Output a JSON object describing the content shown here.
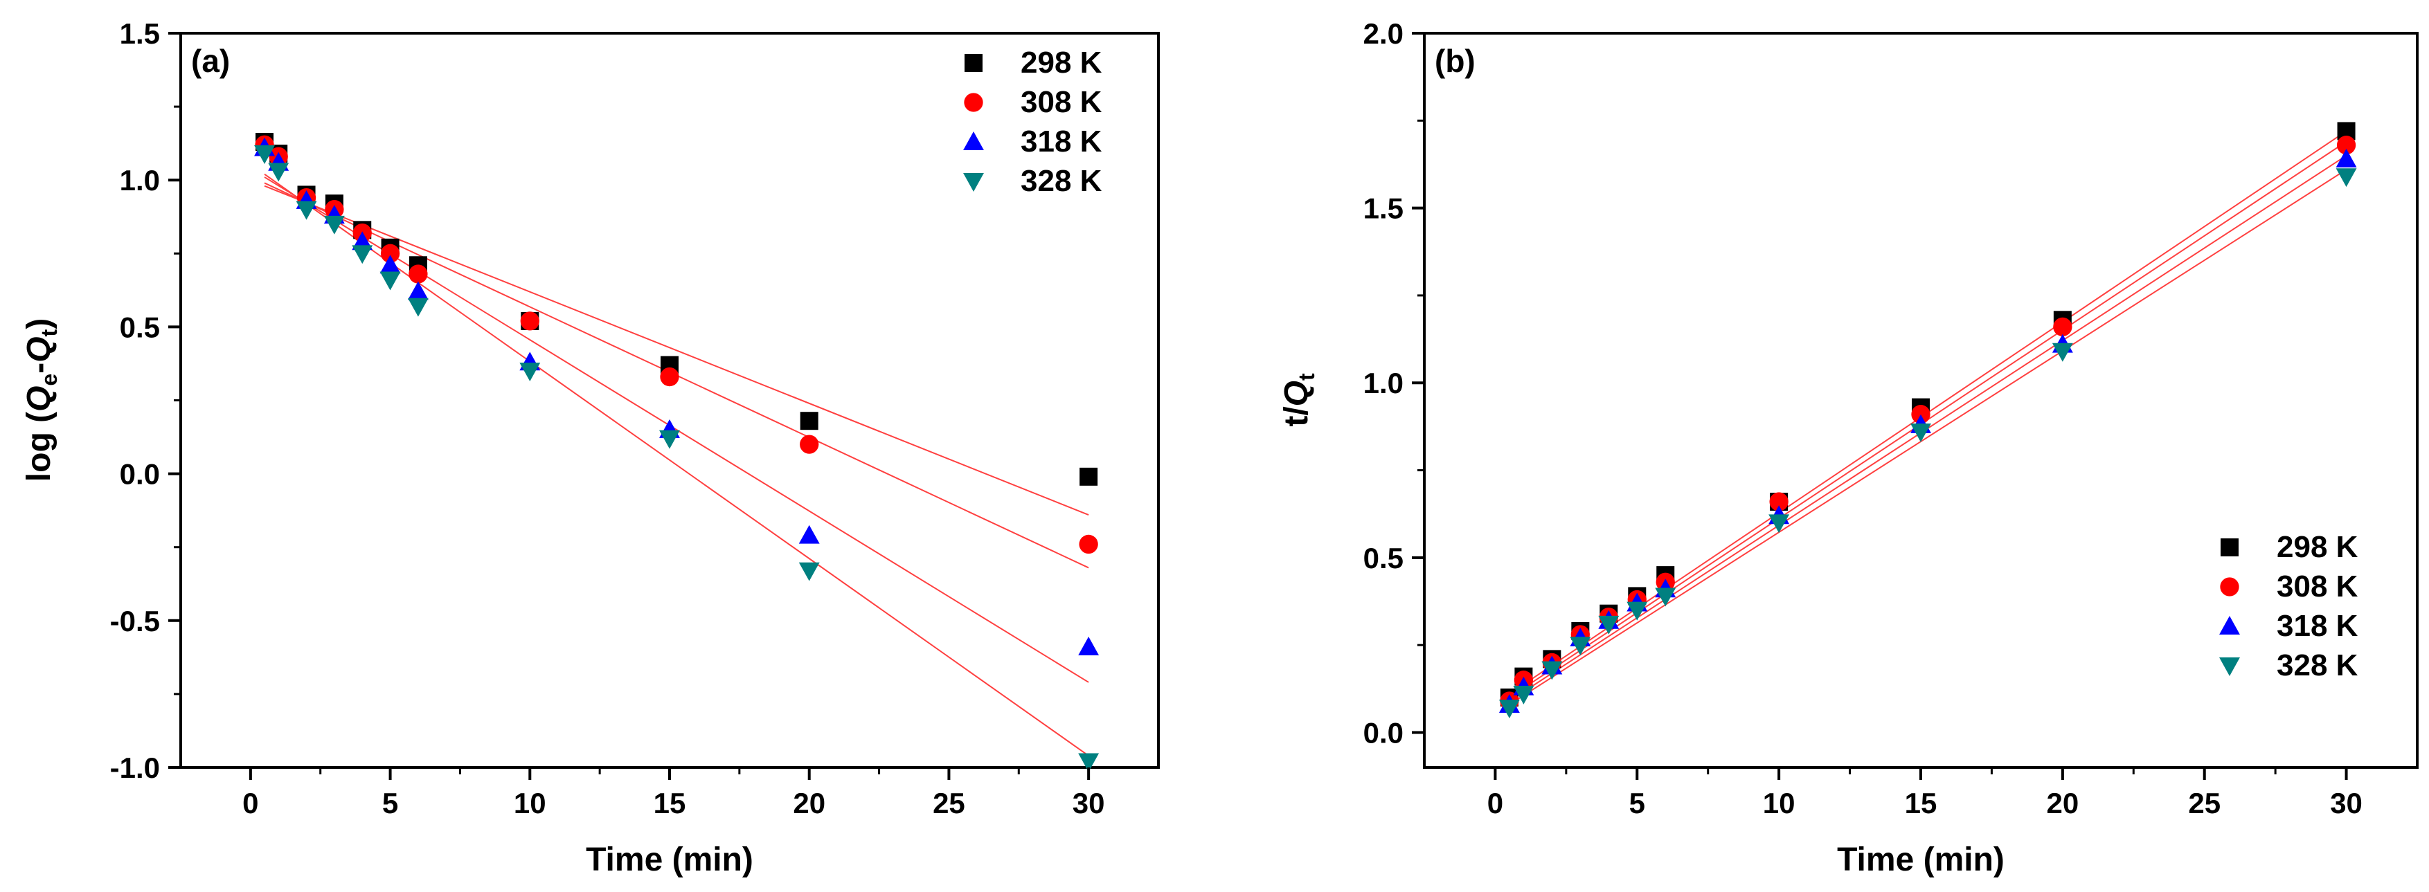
{
  "chart_data": [
    {
      "type": "scatter",
      "panel_label": "(a)",
      "title": "",
      "xlabel": "Time (min)",
      "ylabel_parts": {
        "prefix": "log (",
        "q1": "Q",
        "sub1": "e",
        "dash": "-",
        "q2": "Q",
        "sub2": "t",
        "suffix": ")"
      },
      "xlim": [
        -2.5,
        32.5
      ],
      "ylim": [
        -1.0,
        1.5
      ],
      "xticks": [
        0,
        5,
        10,
        15,
        20,
        25,
        30
      ],
      "yticks": [
        -1.0,
        -0.5,
        0.0,
        0.5,
        1.0,
        1.5
      ],
      "xtick_labels": [
        "0",
        "5",
        "10",
        "15",
        "20",
        "25",
        "30"
      ],
      "ytick_labels": [
        "-1.0",
        "-0.5",
        "0.0",
        "0.5",
        "1.0",
        "1.5"
      ],
      "legend_position": "top-right",
      "x": [
        0.5,
        1,
        2,
        3,
        4,
        5,
        6,
        10,
        15,
        20,
        30
      ],
      "series": [
        {
          "name": "298 K",
          "marker": "square",
          "color": "#000000",
          "values": [
            1.13,
            1.09,
            0.95,
            0.92,
            0.83,
            0.77,
            0.71,
            0.52,
            0.37,
            0.18,
            -0.01
          ],
          "fit": {
            "x": [
              0.5,
              30
            ],
            "y": [
              0.98,
              -0.14
            ]
          }
        },
        {
          "name": "308 K",
          "marker": "circle",
          "color": "#ff0000",
          "values": [
            1.12,
            1.08,
            0.94,
            0.9,
            0.82,
            0.75,
            0.68,
            0.52,
            0.33,
            0.1,
            -0.24
          ],
          "fit": {
            "x": [
              0.5,
              30
            ],
            "y": [
              0.99,
              -0.32
            ]
          }
        },
        {
          "name": "318 K",
          "marker": "triangle-up",
          "color": "#0000ff",
          "values": [
            1.11,
            1.06,
            0.93,
            0.88,
            0.79,
            0.71,
            0.62,
            0.38,
            0.15,
            -0.21,
            -0.59
          ],
          "fit": {
            "x": [
              0.5,
              30
            ],
            "y": [
              1.01,
              -0.71
            ]
          }
        },
        {
          "name": "328 K",
          "marker": "triangle-down",
          "color": "#008080",
          "values": [
            1.09,
            1.03,
            0.9,
            0.85,
            0.75,
            0.66,
            0.57,
            0.35,
            0.12,
            -0.33,
            -0.98
          ],
          "fit": {
            "x": [
              0.5,
              30
            ],
            "y": [
              1.02,
              -0.96
            ]
          }
        }
      ]
    },
    {
      "type": "scatter",
      "panel_label": "(b)",
      "title": "",
      "xlabel": "Time (min)",
      "ylabel_parts": {
        "prefix": "t/",
        "q1": "Q",
        "sub1": "t"
      },
      "xlim": [
        -2.5,
        32.5
      ],
      "ylim": [
        -0.1,
        2.0
      ],
      "xticks": [
        0,
        5,
        10,
        15,
        20,
        25,
        30
      ],
      "yticks": [
        0.0,
        0.5,
        1.0,
        1.5,
        2.0
      ],
      "xtick_labels": [
        "0",
        "5",
        "10",
        "15",
        "20",
        "25",
        "30"
      ],
      "ytick_labels": [
        "0.0",
        "0.5",
        "1.0",
        "1.5",
        "2.0"
      ],
      "legend_position": "bottom-right",
      "x": [
        0.5,
        1,
        2,
        3,
        4,
        5,
        6,
        10,
        15,
        20,
        30
      ],
      "series": [
        {
          "name": "298 K",
          "marker": "square",
          "color": "#000000",
          "values": [
            0.1,
            0.16,
            0.21,
            0.29,
            0.34,
            0.39,
            0.45,
            0.66,
            0.93,
            1.18,
            1.72
          ],
          "fit": {
            "x": [
              0.5,
              30
            ],
            "y": [
              0.11,
              1.72
            ]
          }
        },
        {
          "name": "308 K",
          "marker": "circle",
          "color": "#ff0000",
          "values": [
            0.09,
            0.15,
            0.2,
            0.28,
            0.33,
            0.38,
            0.43,
            0.66,
            0.91,
            1.16,
            1.68
          ],
          "fit": {
            "x": [
              0.5,
              30
            ],
            "y": [
              0.1,
              1.69
            ]
          }
        },
        {
          "name": "318 K",
          "marker": "triangle-up",
          "color": "#0000ff",
          "values": [
            0.08,
            0.13,
            0.19,
            0.27,
            0.32,
            0.37,
            0.41,
            0.62,
            0.88,
            1.11,
            1.64
          ],
          "fit": {
            "x": [
              0.5,
              30
            ],
            "y": [
              0.09,
              1.65
            ]
          }
        },
        {
          "name": "328 K",
          "marker": "triangle-down",
          "color": "#008080",
          "values": [
            0.07,
            0.11,
            0.18,
            0.25,
            0.31,
            0.35,
            0.39,
            0.6,
            0.86,
            1.09,
            1.59
          ],
          "fit": {
            "x": [
              0.5,
              30
            ],
            "y": [
              0.08,
              1.61
            ]
          }
        }
      ]
    }
  ],
  "style": {
    "fit_line_color": "#ff4040",
    "axis_color": "#000000"
  }
}
